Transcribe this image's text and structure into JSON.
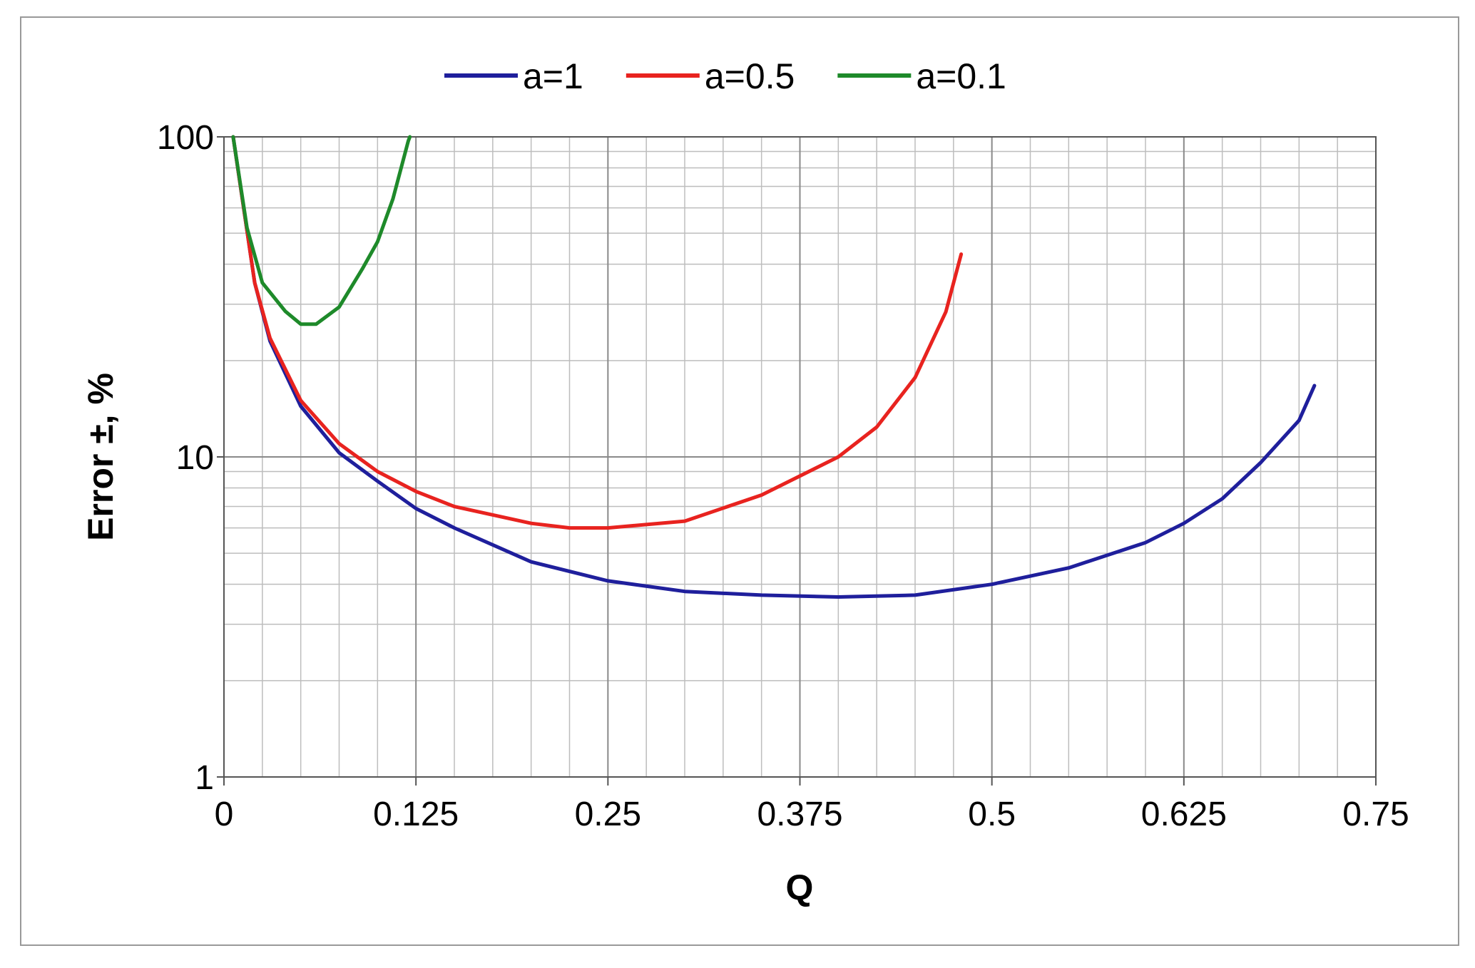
{
  "chart_data": {
    "type": "line",
    "x_label": "Q",
    "y_label": "Error ±, %",
    "xlim": [
      0,
      0.75
    ],
    "xticks": [
      0,
      0.125,
      0.25,
      0.375,
      0.5,
      0.625,
      0.75
    ],
    "ylim": [
      1,
      100
    ],
    "yticks": [
      1,
      10,
      100
    ],
    "yscale": "log",
    "grid": true,
    "minor_grid": true,
    "legend": "top",
    "series": [
      {
        "name": "a=1",
        "color": "#1f1f9c",
        "x": [
          0.006,
          0.02,
          0.03,
          0.05,
          0.075,
          0.1,
          0.125,
          0.15,
          0.2,
          0.25,
          0.3,
          0.35,
          0.4,
          0.45,
          0.5,
          0.55,
          0.6,
          0.625,
          0.65,
          0.675,
          0.7,
          0.71
        ],
        "values": [
          100,
          35,
          23,
          14.4,
          10.3,
          8.4,
          6.9,
          6.0,
          4.7,
          4.1,
          3.8,
          3.7,
          3.65,
          3.7,
          4.0,
          4.5,
          5.4,
          6.2,
          7.4,
          9.6,
          13,
          16.7
        ]
      },
      {
        "name": "a=0.5",
        "color": "#e8231f",
        "x": [
          0.006,
          0.02,
          0.03,
          0.05,
          0.075,
          0.1,
          0.125,
          0.15,
          0.2,
          0.225,
          0.25,
          0.3,
          0.35,
          0.4,
          0.425,
          0.45,
          0.47,
          0.48
        ],
        "values": [
          100,
          35,
          23.5,
          15,
          11,
          9.0,
          7.8,
          7.0,
          6.2,
          6.0,
          6.0,
          6.3,
          7.6,
          10,
          12.4,
          17.7,
          28.4,
          43
        ]
      },
      {
        "name": "a=0.1",
        "color": "#1e8a2a",
        "x": [
          0.006,
          0.015,
          0.025,
          0.04,
          0.05,
          0.06,
          0.075,
          0.09,
          0.1,
          0.11,
          0.12,
          0.121
        ],
        "values": [
          100,
          52,
          35,
          28.5,
          26,
          26,
          29.4,
          38.6,
          47,
          64,
          97,
          100
        ]
      }
    ]
  }
}
